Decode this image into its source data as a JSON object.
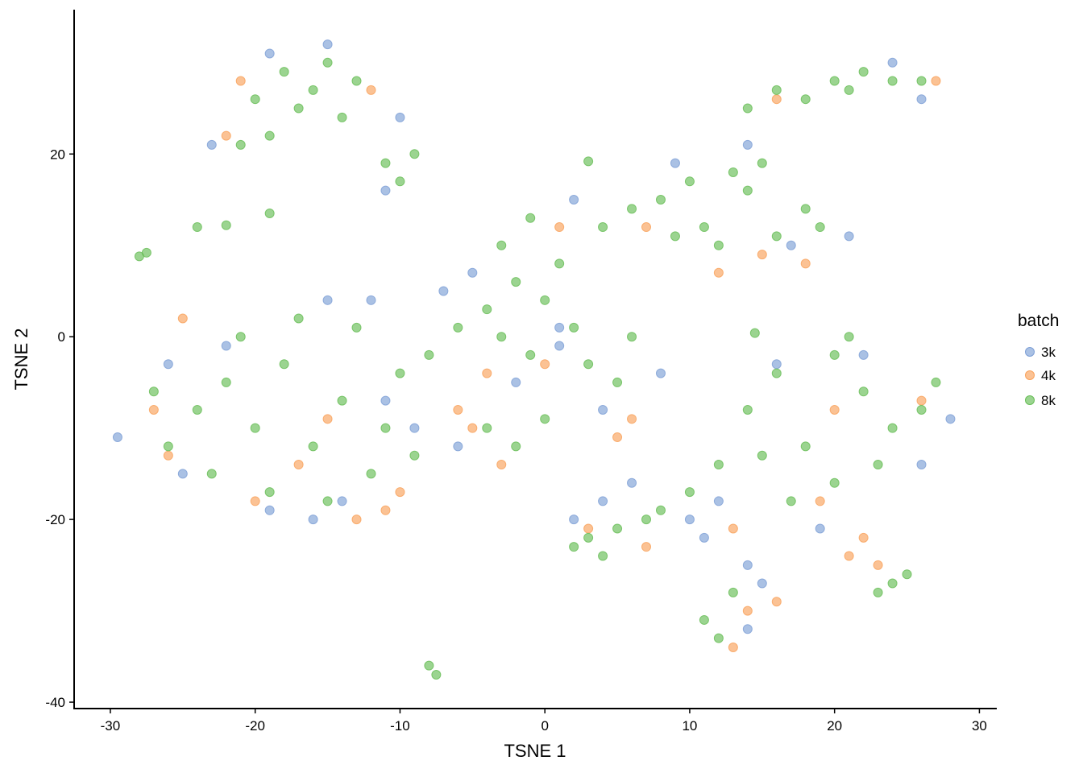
{
  "chart_data": {
    "type": "scatter",
    "x_label": "TSNE 1",
    "y_label": "TSNE 2",
    "legend_title": "batch",
    "xlim": [
      -32.5,
      31.2
    ],
    "ylim": [
      -40.7,
      35.8
    ],
    "xticks": [
      -30,
      -20,
      -10,
      0,
      10,
      20,
      30
    ],
    "yticks": [
      -40,
      -20,
      0,
      20
    ],
    "grid": false,
    "legend_position": "right",
    "series": [
      {
        "name": "3k",
        "color": "#7d9fd6",
        "x": [
          -29.5,
          -25,
          -19,
          -14,
          -7,
          -5,
          -11,
          -12,
          -15,
          -22,
          -9,
          1,
          1,
          -2,
          4,
          8,
          -23,
          -19,
          -15,
          -11,
          -10,
          2,
          9,
          14,
          17,
          21,
          24,
          26,
          12,
          11,
          2,
          4,
          14,
          16,
          19,
          26,
          28,
          22,
          14,
          10,
          -26,
          -16,
          -6,
          6,
          15
        ],
        "values": [
          -11,
          -15,
          -19,
          -18,
          5,
          7,
          -7,
          4,
          4,
          -1,
          -10,
          -1,
          1,
          -5,
          -8,
          -4,
          21,
          31,
          32,
          16,
          24,
          15,
          19,
          21,
          10,
          11,
          30,
          26,
          -18,
          -22,
          -20,
          -18,
          -25,
          -3,
          -21,
          -14,
          -9,
          -2,
          -32,
          -20,
          -3,
          -20,
          -12,
          -16,
          -27
        ]
      },
      {
        "name": "4k",
        "color": "#f9a15a",
        "x": [
          -13,
          -10,
          -11,
          -20,
          -26,
          -25,
          -4,
          -6,
          -5,
          0,
          5,
          6,
          -21,
          -22,
          -12,
          12,
          15,
          7,
          18,
          22,
          21,
          23,
          19,
          13,
          26,
          14,
          13,
          16,
          3,
          7,
          16,
          27,
          -17,
          -15,
          -27,
          20,
          1,
          -3
        ],
        "values": [
          -20,
          -17,
          -19,
          -18,
          -13,
          2,
          -4,
          -8,
          -10,
          -3,
          -11,
          -9,
          28,
          22,
          27,
          7,
          9,
          12,
          8,
          -22,
          -24,
          -25,
          -18,
          -21,
          -7,
          -30,
          -34,
          -29,
          -21,
          -23,
          26,
          28,
          -14,
          -9,
          -8,
          -8,
          12,
          -14
        ]
      },
      {
        "name": "8k",
        "color": "#66bd55",
        "x": [
          -24,
          -22,
          -20,
          -18,
          -16,
          -14,
          -12,
          -10,
          -26,
          -23,
          -19,
          -15,
          -11,
          -8,
          -6,
          -17,
          -21,
          -13,
          -27,
          -9,
          -20,
          -18,
          -16,
          -14,
          -19,
          -21,
          -15,
          -13,
          -11,
          -10,
          -9,
          -17,
          -4,
          -2,
          0,
          1,
          -3,
          -1,
          2,
          3,
          5,
          6,
          -4,
          -2,
          0,
          -1,
          -3,
          4,
          6,
          8,
          10,
          11,
          12,
          14,
          15,
          16,
          18,
          19,
          13,
          9,
          16,
          18,
          20,
          22,
          24,
          26,
          14,
          21,
          12,
          14,
          16,
          18,
          20,
          22,
          24,
          26,
          20,
          17,
          23,
          21,
          15,
          27,
          10,
          8,
          3,
          5,
          2,
          7,
          4,
          -8,
          -7.5,
          11,
          12,
          13,
          24,
          25,
          23,
          -24,
          -22,
          -28,
          -27.5,
          3,
          14.5,
          -19
        ],
        "values": [
          -8,
          -5,
          -10,
          -3,
          -12,
          -7,
          -15,
          -4,
          -12,
          -15,
          -17,
          -18,
          -10,
          -2,
          1,
          2,
          0,
          1,
          -6,
          -13,
          26,
          29,
          27,
          24,
          22,
          21,
          30,
          28,
          19,
          17,
          20,
          25,
          3,
          6,
          4,
          8,
          0,
          -2,
          1,
          -3,
          -5,
          0,
          -10,
          -12,
          -9,
          13,
          10,
          12,
          14,
          15,
          17,
          12,
          10,
          16,
          19,
          11,
          14,
          12,
          18,
          11,
          27,
          26,
          28,
          29,
          28,
          28,
          25,
          27,
          -14,
          -8,
          -4,
          -12,
          -2,
          -6,
          -10,
          -8,
          -16,
          -18,
          -14,
          0,
          -13,
          -5,
          -17,
          -19,
          -22,
          -21,
          -23,
          -20,
          -24,
          -36,
          -37,
          -31,
          -33,
          -28,
          -27,
          -26,
          -28,
          12,
          12.2,
          8.8,
          9.2,
          19.2,
          0.4,
          13.5
        ]
      }
    ]
  }
}
